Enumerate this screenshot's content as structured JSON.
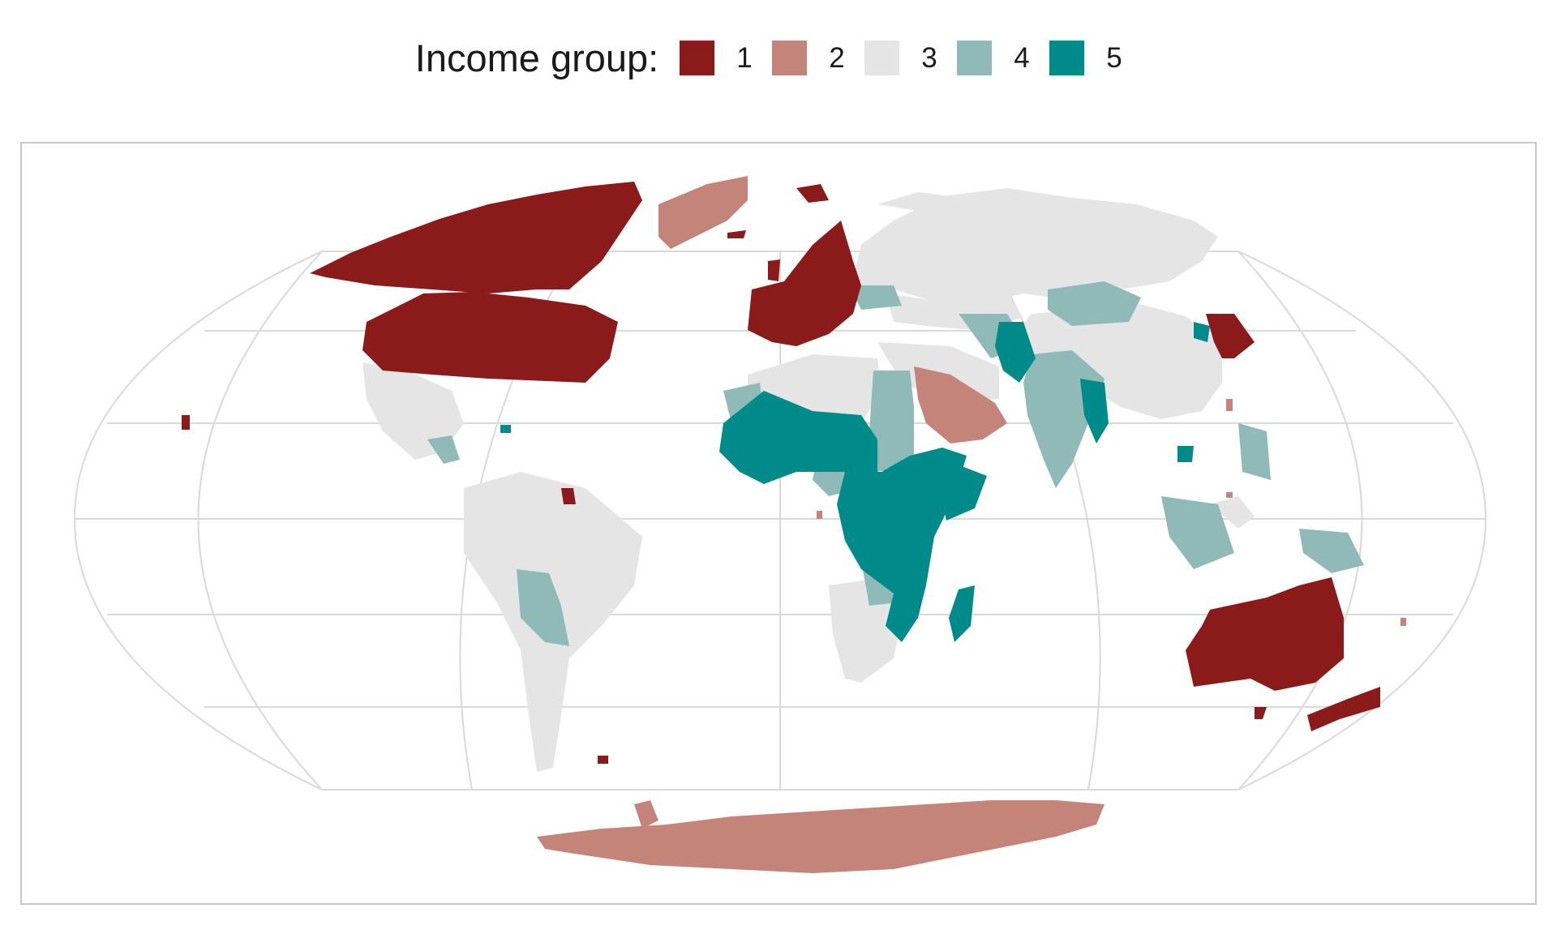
{
  "legend": {
    "title": "Income group:",
    "items": [
      {
        "label": "1",
        "color": "#8b1a1a"
      },
      {
        "label": "2",
        "color": "#c48479"
      },
      {
        "label": "3",
        "color": "#e5e5e5"
      },
      {
        "label": "4",
        "color": "#8fbab8"
      },
      {
        "label": "5",
        "color": "#008b8b"
      }
    ]
  },
  "map": {
    "projection": "Winkel tripel",
    "graticule": true,
    "colors": {
      "group1": "#8b1a1a",
      "group2": "#c48479",
      "group3": "#e5e5e5",
      "group4": "#8fbab8",
      "group5": "#008b8b",
      "graticule": "#d9d9d9",
      "border": "#c8c8c8"
    }
  }
}
